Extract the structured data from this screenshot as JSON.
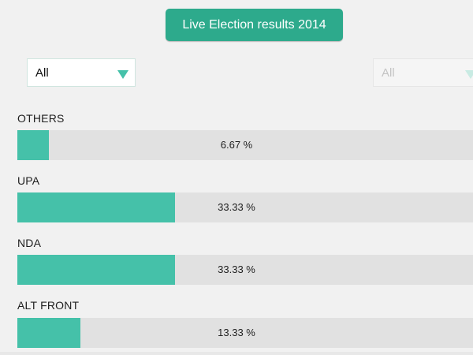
{
  "header": {
    "title": "Live Election results 2014"
  },
  "filters": {
    "left": {
      "value": "All"
    },
    "right": {
      "value": "All"
    }
  },
  "colors": {
    "accent": "#2daa8c",
    "bar_fill": "#45c1a9",
    "bar_track": "#e1e1e1",
    "background": "#f1f1f1"
  },
  "results": [
    {
      "label": "OTHERS",
      "value_text": "6.67 %",
      "percent": 6.67
    },
    {
      "label": "UPA",
      "value_text": "33.33 %",
      "percent": 33.33
    },
    {
      "label": "NDA",
      "value_text": "33.33 %",
      "percent": 33.33
    },
    {
      "label": "ALT FRONT",
      "value_text": "13.33 %",
      "percent": 13.33
    }
  ]
}
